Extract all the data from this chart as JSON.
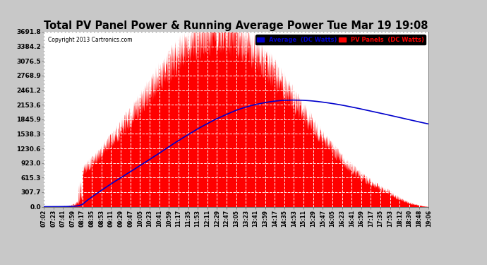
{
  "title": "Total PV Panel Power & Running Average Power Tue Mar 19 19:08",
  "copyright": "Copyright 2013 Cartronics.com",
  "ylabel_values": [
    0.0,
    307.7,
    615.3,
    923.0,
    1230.6,
    1538.3,
    1845.9,
    2153.6,
    2461.2,
    2768.9,
    3076.5,
    3384.2,
    3691.8
  ],
  "ymax": 3691.8,
  "background_color": "#c8c8c8",
  "plot_bg_color": "#ffffff",
  "grid_color": "#ffffff",
  "pv_color": "#ff0000",
  "avg_color": "#0000cc",
  "title_fontsize": 10.5,
  "legend_avg_label": "Average  (DC Watts)",
  "legend_pv_label": "PV Panels  (DC Watts)",
  "x_tick_labels": [
    "07:02",
    "07:23",
    "07:41",
    "07:59",
    "08:17",
    "08:35",
    "08:53",
    "09:11",
    "09:29",
    "09:47",
    "10:05",
    "10:23",
    "10:41",
    "10:59",
    "11:17",
    "11:35",
    "11:53",
    "12:11",
    "12:29",
    "12:47",
    "13:05",
    "13:23",
    "13:41",
    "13:59",
    "14:17",
    "14:35",
    "14:53",
    "15:11",
    "15:29",
    "15:47",
    "16:05",
    "16:23",
    "16:41",
    "16:59",
    "17:17",
    "17:35",
    "17:53",
    "18:12",
    "18:30",
    "18:48",
    "19:06"
  ]
}
